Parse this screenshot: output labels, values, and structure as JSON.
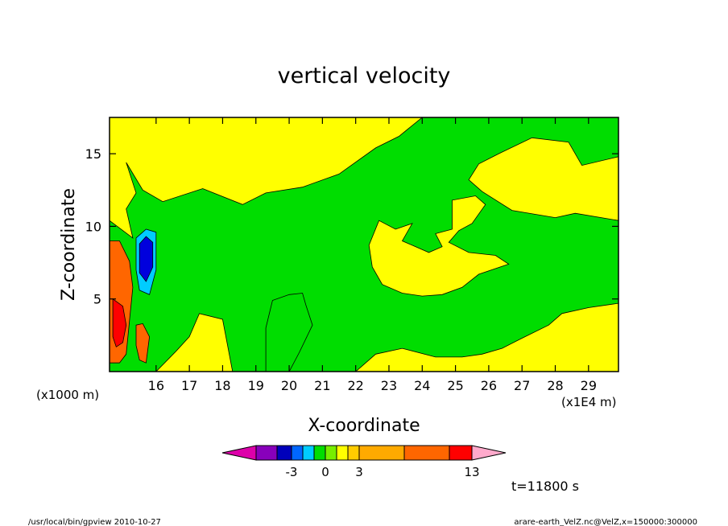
{
  "chart_data": {
    "type": "heatmap",
    "title": "vertical velocity",
    "xlabel": "X-coordinate",
    "ylabel": "Z-coordinate",
    "x_unit_note": "(x1E4 m)",
    "y_unit_note": "(x1000 m)",
    "xlim": [
      14.6,
      29.9
    ],
    "ylim": [
      0.0,
      17.5
    ],
    "x_ticks": [
      16,
      17,
      18,
      19,
      20,
      21,
      22,
      23,
      24,
      25,
      26,
      27,
      28,
      29
    ],
    "y_ticks": [
      5,
      10,
      15
    ],
    "background_level_color": "#ffff00",
    "regions": [
      {
        "level": "slightly-negative",
        "color": "#00dd00",
        "polygon": [
          [
            15.1,
            14.4
          ],
          [
            15.6,
            12.5
          ],
          [
            16.2,
            11.7
          ],
          [
            17.4,
            12.6
          ],
          [
            18.6,
            11.5
          ],
          [
            19.3,
            12.3
          ],
          [
            20.4,
            12.7
          ],
          [
            21.5,
            13.6
          ],
          [
            22.6,
            15.4
          ],
          [
            23.3,
            16.2
          ],
          [
            24.0,
            17.5
          ],
          [
            29.9,
            17.5
          ],
          [
            29.9,
            14.8
          ],
          [
            28.8,
            14.2
          ],
          [
            28.4,
            15.8
          ],
          [
            27.3,
            16.1
          ],
          [
            26.3,
            15.0
          ],
          [
            25.7,
            14.3
          ],
          [
            25.4,
            13.2
          ],
          [
            25.8,
            12.4
          ],
          [
            26.7,
            11.1
          ],
          [
            28.0,
            10.6
          ],
          [
            28.6,
            10.9
          ],
          [
            29.9,
            10.4
          ],
          [
            29.9,
            4.7
          ],
          [
            29.0,
            4.4
          ],
          [
            28.2,
            4.0
          ],
          [
            27.8,
            3.2
          ],
          [
            27.0,
            2.3
          ],
          [
            26.4,
            1.6
          ],
          [
            25.8,
            1.2
          ],
          [
            25.2,
            1.0
          ],
          [
            24.4,
            1.0
          ],
          [
            23.4,
            1.6
          ],
          [
            22.6,
            1.2
          ],
          [
            22.0,
            0.0
          ],
          [
            19.3,
            0.0
          ],
          [
            19.3,
            3.0
          ],
          [
            19.5,
            4.9
          ],
          [
            20.0,
            5.3
          ],
          [
            20.4,
            5.4
          ],
          [
            20.5,
            4.6
          ],
          [
            20.7,
            3.2
          ],
          [
            20.3,
            1.3
          ],
          [
            20.0,
            0.0
          ],
          [
            18.3,
            0.0
          ],
          [
            18.0,
            3.6
          ],
          [
            17.3,
            4.0
          ],
          [
            17.0,
            2.4
          ],
          [
            16.6,
            1.4
          ],
          [
            16.0,
            0.0
          ],
          [
            14.6,
            0.0
          ],
          [
            14.6,
            10.4
          ],
          [
            15.3,
            9.2
          ],
          [
            15.1,
            11.2
          ],
          [
            15.4,
            12.3
          ]
        ]
      },
      {
        "level": "slightly-positive",
        "color": "#ffff00",
        "polygon": [
          [
            22.7,
            10.4
          ],
          [
            23.2,
            9.8
          ],
          [
            23.7,
            10.2
          ],
          [
            23.4,
            9.0
          ],
          [
            24.2,
            8.2
          ],
          [
            24.6,
            8.6
          ],
          [
            24.4,
            9.5
          ],
          [
            24.9,
            9.8
          ],
          [
            24.9,
            11.8
          ],
          [
            25.6,
            12.1
          ],
          [
            25.9,
            11.5
          ],
          [
            25.5,
            10.2
          ],
          [
            25.1,
            9.7
          ],
          [
            24.8,
            8.9
          ],
          [
            25.4,
            8.2
          ],
          [
            26.2,
            8.0
          ],
          [
            26.6,
            7.4
          ],
          [
            25.7,
            6.7
          ],
          [
            25.2,
            5.8
          ],
          [
            24.6,
            5.3
          ],
          [
            24.0,
            5.2
          ],
          [
            23.4,
            5.4
          ],
          [
            22.8,
            6.0
          ],
          [
            22.5,
            7.2
          ],
          [
            22.4,
            8.7
          ]
        ]
      },
      {
        "level": "positive",
        "color": "#ff6600",
        "polygon": [
          [
            14.6,
            9.0
          ],
          [
            14.9,
            9.0
          ],
          [
            15.2,
            7.6
          ],
          [
            15.3,
            5.8
          ],
          [
            15.2,
            3.5
          ],
          [
            15.1,
            1.2
          ],
          [
            14.9,
            0.6
          ],
          [
            14.6,
            0.6
          ]
        ]
      },
      {
        "level": "strong-positive",
        "color": "#ff0000",
        "polygon": [
          [
            14.7,
            5.0
          ],
          [
            15.0,
            4.5
          ],
          [
            15.1,
            3.2
          ],
          [
            15.0,
            2.0
          ],
          [
            14.8,
            1.7
          ],
          [
            14.7,
            2.4
          ]
        ]
      },
      {
        "level": "negative",
        "color": "#00ccff",
        "polygon": [
          [
            15.4,
            9.2
          ],
          [
            15.7,
            9.8
          ],
          [
            16.0,
            9.6
          ],
          [
            16.0,
            7.0
          ],
          [
            15.8,
            5.3
          ],
          [
            15.5,
            5.6
          ],
          [
            15.4,
            7.0
          ]
        ]
      },
      {
        "level": "strong-negative",
        "color": "#0000dd",
        "polygon": [
          [
            15.5,
            8.8
          ],
          [
            15.7,
            9.3
          ],
          [
            15.9,
            8.9
          ],
          [
            15.9,
            7.2
          ],
          [
            15.7,
            6.2
          ],
          [
            15.5,
            6.8
          ]
        ]
      },
      {
        "level": "positive-low",
        "color": "#ff6600",
        "polygon": [
          [
            15.4,
            3.2
          ],
          [
            15.6,
            3.3
          ],
          [
            15.8,
            2.4
          ],
          [
            15.7,
            0.6
          ],
          [
            15.5,
            0.8
          ],
          [
            15.4,
            1.8
          ]
        ]
      }
    ],
    "colorbar": {
      "colors": [
        "#dd00aa",
        "#8800bb",
        "#0000bb",
        "#0066ff",
        "#00ccff",
        "#00dd00",
        "#77ee00",
        "#ffff00",
        "#ffcc00",
        "#ffaa00",
        "#ff6600",
        "#ff0000",
        "#ff7777",
        "#ffaacc"
      ],
      "tick_labels": [
        "-3",
        "0",
        "3",
        "13"
      ]
    },
    "time_label": "t=11800 s"
  },
  "footer": {
    "left": "/usr/local/bin/gpview   2010-10-27",
    "right": "arare-earth_VelZ.nc@VelZ,x=150000:300000"
  }
}
